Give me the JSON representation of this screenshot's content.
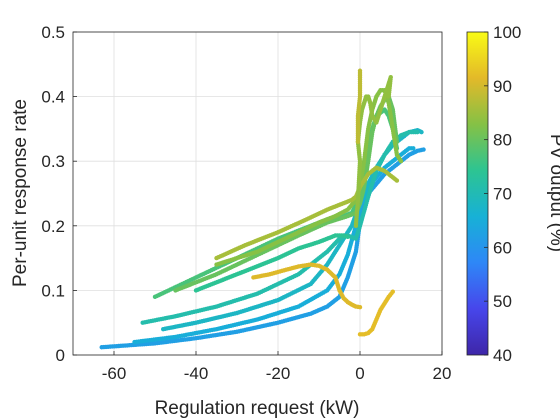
{
  "chart_data": {
    "type": "scatter",
    "xlabel": "Regulation request (kW)",
    "ylabel": "Per-unit response rate",
    "colorbar_label": "PV output (%)",
    "xlim": [
      -70,
      20
    ],
    "ylim": [
      0,
      0.5
    ],
    "xticks": [
      -60,
      -40,
      -20,
      0,
      20
    ],
    "xtick_labels": [
      "-60",
      "-40",
      "-20",
      "0",
      "20"
    ],
    "yticks": [
      0,
      0.1,
      0.2,
      0.3,
      0.4,
      0.5
    ],
    "ytick_labels": [
      "0",
      "0.1",
      "0.2",
      "0.3",
      "0.4",
      "0.5"
    ],
    "colorbar_range": [
      40,
      100
    ],
    "colorbar_ticks": [
      40,
      50,
      60,
      70,
      80,
      90,
      100
    ],
    "colorbar_tick_labels": [
      "40",
      "50",
      "60",
      "70",
      "80",
      "90",
      "100"
    ],
    "colormap": "parula",
    "colormap_stops": [
      "#3e26a8",
      "#4746eb",
      "#2e87f7",
      "#17b1d6",
      "#2dc492",
      "#85c145",
      "#e3b929",
      "#f9fb15"
    ],
    "grid": true,
    "legend": "none",
    "series": [
      {
        "pv": 62,
        "x": [
          -63,
          -50,
          -40,
          -30,
          -20,
          -12,
          -8,
          -5,
          -3,
          -1,
          0,
          1,
          2,
          4,
          6,
          8,
          10,
          12,
          14,
          15.5
        ],
        "y": [
          0.012,
          0.018,
          0.026,
          0.036,
          0.05,
          0.064,
          0.075,
          0.09,
          0.12,
          0.16,
          0.205,
          0.23,
          0.25,
          0.265,
          0.28,
          0.29,
          0.3,
          0.31,
          0.316,
          0.318
        ]
      },
      {
        "pv": 65,
        "x": [
          -55,
          -45,
          -35,
          -25,
          -15,
          -8,
          -5,
          -3,
          -1,
          0,
          2,
          4,
          6,
          8,
          10,
          12,
          13
        ],
        "y": [
          0.02,
          0.028,
          0.04,
          0.055,
          0.075,
          0.1,
          0.125,
          0.155,
          0.2,
          0.23,
          0.26,
          0.275,
          0.29,
          0.3,
          0.31,
          0.32,
          0.32
        ]
      },
      {
        "pv": 68,
        "x": [
          -48,
          -40,
          -30,
          -20,
          -12,
          -8,
          -5,
          -2,
          0,
          2,
          4,
          6,
          8,
          10,
          12,
          14,
          15
        ],
        "y": [
          0.04,
          0.05,
          0.065,
          0.085,
          0.11,
          0.14,
          0.17,
          0.2,
          0.235,
          0.265,
          0.29,
          0.31,
          0.325,
          0.335,
          0.345,
          0.348,
          0.345
        ]
      },
      {
        "pv": 71,
        "x": [
          -53,
          -45,
          -35,
          -25,
          -15,
          -8,
          -5,
          -3,
          -1,
          0,
          2,
          4,
          6,
          8,
          10,
          12,
          14
        ],
        "y": [
          0.05,
          0.06,
          0.075,
          0.095,
          0.125,
          0.16,
          0.18,
          0.185,
          0.18,
          0.2,
          0.245,
          0.285,
          0.31,
          0.33,
          0.34,
          0.345,
          0.345
        ]
      },
      {
        "pv": 74,
        "x": [
          -40,
          -32,
          -26,
          -20,
          -15,
          -10,
          -6,
          -4,
          -3
        ],
        "y": [
          0.1,
          0.12,
          0.135,
          0.15,
          0.165,
          0.175,
          0.185,
          0.185,
          0.183
        ]
      },
      {
        "pv": 77,
        "x": [
          -50,
          -40,
          -30,
          -20,
          -12,
          -8,
          -4,
          -2,
          0,
          1,
          2,
          3,
          4,
          5,
          6,
          7,
          8,
          9
        ],
        "y": [
          0.09,
          0.12,
          0.15,
          0.18,
          0.2,
          0.21,
          0.215,
          0.22,
          0.245,
          0.27,
          0.32,
          0.35,
          0.37,
          0.375,
          0.38,
          0.37,
          0.35,
          0.32
        ]
      },
      {
        "pv": 80,
        "x": [
          -45,
          -35,
          -25,
          -15,
          -8,
          -3,
          -1,
          0,
          1,
          2,
          3,
          4,
          5,
          6,
          7,
          8,
          9
        ],
        "y": [
          0.1,
          0.125,
          0.155,
          0.185,
          0.205,
          0.215,
          0.22,
          0.235,
          0.26,
          0.3,
          0.345,
          0.37,
          0.385,
          0.395,
          0.4,
          0.38,
          0.33
        ]
      },
      {
        "pv": 83,
        "x": [
          -35,
          -30,
          -25,
          -20,
          -15,
          -10,
          -6,
          -3,
          -1,
          0,
          1,
          2,
          3,
          4,
          5,
          6,
          7,
          8,
          9,
          10
        ],
        "y": [
          0.14,
          0.15,
          0.16,
          0.175,
          0.19,
          0.205,
          0.215,
          0.225,
          0.24,
          0.26,
          0.3,
          0.35,
          0.38,
          0.4,
          0.41,
          0.41,
          0.39,
          0.35,
          0.31,
          0.3
        ]
      },
      {
        "pv": 86,
        "x": [
          -35,
          -28,
          -20,
          -13,
          -8,
          -4,
          -2,
          -1,
          0,
          2,
          4,
          6,
          8,
          9
        ],
        "y": [
          0.15,
          0.17,
          0.19,
          0.21,
          0.225,
          0.235,
          0.24,
          0.245,
          0.26,
          0.28,
          0.29,
          0.285,
          0.275,
          0.27
        ]
      },
      {
        "pv": 84,
        "x": [
          -1,
          -0.5,
          0,
          -0.5,
          0,
          0.5,
          1,
          1.5,
          2,
          2.5,
          3,
          4,
          5,
          6,
          7,
          7.5,
          7
        ],
        "y": [
          0.2,
          0.24,
          0.3,
          0.33,
          0.36,
          0.38,
          0.39,
          0.4,
          0.4,
          0.39,
          0.37,
          0.36,
          0.38,
          0.4,
          0.42,
          0.43,
          0.4
        ]
      },
      {
        "pv": 88,
        "x": [
          -0.5,
          -0.5,
          0,
          0,
          0
        ],
        "y": [
          0.33,
          0.37,
          0.4,
          0.42,
          0.44
        ]
      },
      {
        "pv": 91,
        "x": [
          -26,
          -22,
          -18,
          -15,
          -12,
          -10,
          -8,
          -6,
          -5,
          -4,
          -3,
          -2,
          -1,
          0
        ],
        "y": [
          0.12,
          0.125,
          0.132,
          0.137,
          0.14,
          0.138,
          0.132,
          0.12,
          0.1,
          0.088,
          0.082,
          0.078,
          0.075,
          0.074
        ]
      },
      {
        "pv": 92,
        "x": [
          0,
          1,
          2,
          3,
          4,
          5,
          6,
          7,
          8
        ],
        "y": [
          0.032,
          0.032,
          0.034,
          0.04,
          0.055,
          0.07,
          0.08,
          0.09,
          0.098
        ]
      }
    ]
  }
}
